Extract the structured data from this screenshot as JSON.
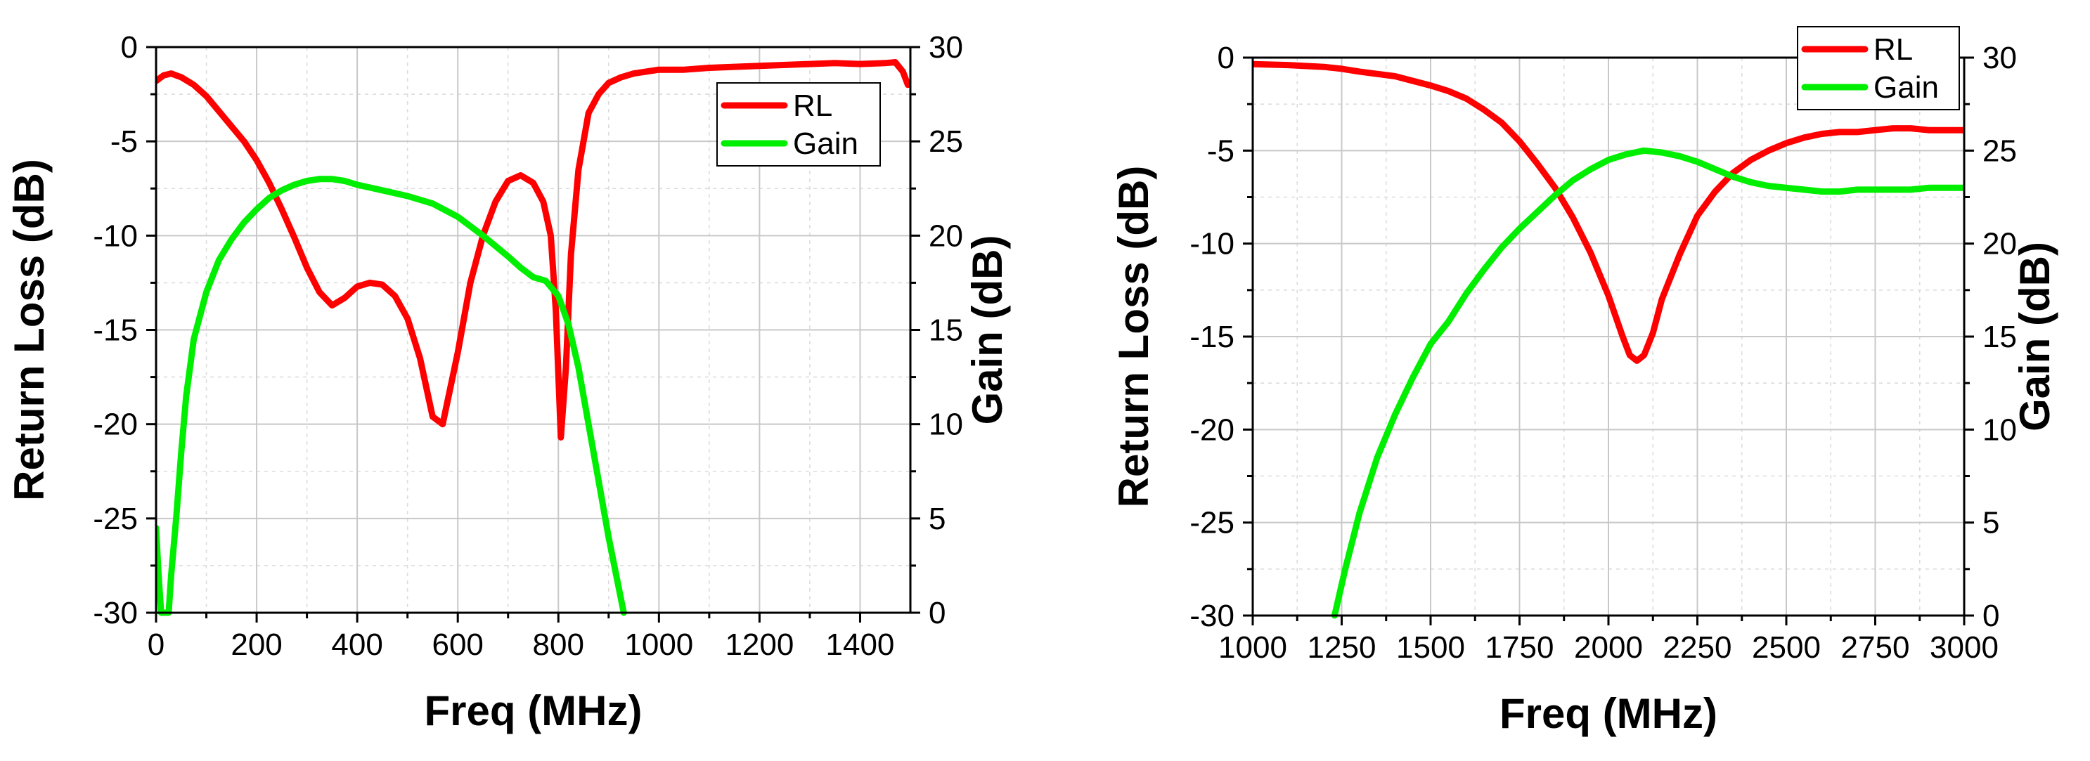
{
  "chart_data": [
    {
      "type": "line",
      "xlabel": "Freq (MHz)",
      "ylabel": "Return Loss (dB)",
      "y2label": "Gain (dB)",
      "xlim": [
        0,
        1500
      ],
      "ylim": [
        -30,
        0
      ],
      "y2lim": [
        0,
        30
      ],
      "xticks": [
        0,
        200,
        400,
        600,
        800,
        1000,
        1200,
        1400
      ],
      "yticks": [
        -30,
        -25,
        -20,
        -15,
        -10,
        -5,
        0
      ],
      "y2ticks": [
        0,
        5,
        10,
        15,
        20,
        25,
        30
      ],
      "grid": true,
      "legend_position": "top-right",
      "series": [
        {
          "name": "RL",
          "color": "#ff0000",
          "axis": "left",
          "points": [
            [
              0,
              -1.8
            ],
            [
              15,
              -1.5
            ],
            [
              30,
              -1.4
            ],
            [
              50,
              -1.6
            ],
            [
              75,
              -2.0
            ],
            [
              100,
              -2.6
            ],
            [
              125,
              -3.4
            ],
            [
              150,
              -4.2
            ],
            [
              175,
              -5.0
            ],
            [
              200,
              -6.0
            ],
            [
              225,
              -7.2
            ],
            [
              250,
              -8.6
            ],
            [
              275,
              -10.1
            ],
            [
              300,
              -11.7
            ],
            [
              325,
              -13.0
            ],
            [
              350,
              -13.7
            ],
            [
              375,
              -13.3
            ],
            [
              400,
              -12.7
            ],
            [
              425,
              -12.5
            ],
            [
              450,
              -12.6
            ],
            [
              475,
              -13.2
            ],
            [
              500,
              -14.4
            ],
            [
              525,
              -16.5
            ],
            [
              550,
              -19.6
            ],
            [
              570,
              -20.0
            ],
            [
              600,
              -16.2
            ],
            [
              625,
              -12.5
            ],
            [
              650,
              -10.0
            ],
            [
              675,
              -8.2
            ],
            [
              700,
              -7.1
            ],
            [
              725,
              -6.8
            ],
            [
              750,
              -7.2
            ],
            [
              770,
              -8.2
            ],
            [
              785,
              -10.0
            ],
            [
              795,
              -14.0
            ],
            [
              805,
              -20.7
            ],
            [
              815,
              -17.0
            ],
            [
              825,
              -11.0
            ],
            [
              840,
              -6.5
            ],
            [
              860,
              -3.5
            ],
            [
              880,
              -2.5
            ],
            [
              900,
              -1.9
            ],
            [
              925,
              -1.6
            ],
            [
              950,
              -1.4
            ],
            [
              1000,
              -1.2
            ],
            [
              1050,
              -1.2
            ],
            [
              1100,
              -1.1
            ],
            [
              1200,
              -1.0
            ],
            [
              1300,
              -0.9
            ],
            [
              1350,
              -0.85
            ],
            [
              1400,
              -0.9
            ],
            [
              1450,
              -0.85
            ],
            [
              1470,
              -0.8
            ],
            [
              1485,
              -1.3
            ],
            [
              1495,
              -2.0
            ]
          ]
        },
        {
          "name": "Gain",
          "color": "#00ee00",
          "axis": "right",
          "points": [
            [
              0,
              4.5
            ],
            [
              5,
              2.0
            ],
            [
              10,
              0
            ],
            [
              25,
              0
            ],
            [
              30,
              2.0
            ],
            [
              40,
              5.0
            ],
            [
              50,
              8.5
            ],
            [
              60,
              11.5
            ],
            [
              75,
              14.5
            ],
            [
              100,
              17.0
            ],
            [
              125,
              18.7
            ],
            [
              150,
              19.8
            ],
            [
              175,
              20.7
            ],
            [
              200,
              21.4
            ],
            [
              225,
              22.0
            ],
            [
              250,
              22.4
            ],
            [
              275,
              22.7
            ],
            [
              300,
              22.9
            ],
            [
              325,
              23.0
            ],
            [
              350,
              23.0
            ],
            [
              375,
              22.9
            ],
            [
              400,
              22.7
            ],
            [
              450,
              22.4
            ],
            [
              500,
              22.1
            ],
            [
              550,
              21.7
            ],
            [
              600,
              21.0
            ],
            [
              650,
              20.0
            ],
            [
              700,
              18.9
            ],
            [
              725,
              18.3
            ],
            [
              750,
              17.8
            ],
            [
              775,
              17.6
            ],
            [
              800,
              16.8
            ],
            [
              820,
              15.3
            ],
            [
              840,
              13.0
            ],
            [
              860,
              10.0
            ],
            [
              880,
              7.0
            ],
            [
              900,
              4.0
            ],
            [
              915,
              2.0
            ],
            [
              930,
              0
            ]
          ]
        }
      ]
    },
    {
      "type": "line",
      "xlabel": "Freq (MHz)",
      "ylabel": "Return Loss (dB)",
      "y2label": "Gain (dB)",
      "xlim": [
        1000,
        3000
      ],
      "ylim": [
        -30,
        0
      ],
      "y2lim": [
        0,
        30
      ],
      "xticks": [
        1000,
        1250,
        1500,
        1750,
        2000,
        2250,
        2500,
        2750,
        3000
      ],
      "yticks": [
        -30,
        -25,
        -20,
        -15,
        -10,
        -5,
        0
      ],
      "y2ticks": [
        0,
        5,
        10,
        15,
        20,
        25,
        30
      ],
      "grid": true,
      "legend_position": "top-right",
      "series": [
        {
          "name": "RL",
          "color": "#ff0000",
          "axis": "left",
          "points": [
            [
              1000,
              -0.35
            ],
            [
              1100,
              -0.4
            ],
            [
              1200,
              -0.5
            ],
            [
              1250,
              -0.6
            ],
            [
              1300,
              -0.75
            ],
            [
              1400,
              -1.0
            ],
            [
              1500,
              -1.5
            ],
            [
              1550,
              -1.8
            ],
            [
              1600,
              -2.2
            ],
            [
              1650,
              -2.8
            ],
            [
              1700,
              -3.5
            ],
            [
              1750,
              -4.5
            ],
            [
              1800,
              -5.7
            ],
            [
              1850,
              -7.0
            ],
            [
              1900,
              -8.6
            ],
            [
              1950,
              -10.5
            ],
            [
              2000,
              -12.8
            ],
            [
              2040,
              -15.0
            ],
            [
              2060,
              -16.0
            ],
            [
              2080,
              -16.3
            ],
            [
              2100,
              -16.0
            ],
            [
              2125,
              -14.8
            ],
            [
              2150,
              -13.0
            ],
            [
              2200,
              -10.6
            ],
            [
              2250,
              -8.5
            ],
            [
              2300,
              -7.2
            ],
            [
              2350,
              -6.2
            ],
            [
              2400,
              -5.5
            ],
            [
              2450,
              -5.0
            ],
            [
              2500,
              -4.6
            ],
            [
              2550,
              -4.3
            ],
            [
              2600,
              -4.1
            ],
            [
              2650,
              -4.0
            ],
            [
              2700,
              -4.0
            ],
            [
              2750,
              -3.9
            ],
            [
              2800,
              -3.8
            ],
            [
              2850,
              -3.8
            ],
            [
              2900,
              -3.9
            ],
            [
              3000,
              -3.9
            ]
          ]
        },
        {
          "name": "Gain",
          "color": "#00ee00",
          "axis": "right",
          "points": [
            [
              1230,
              0
            ],
            [
              1260,
              2.5
            ],
            [
              1300,
              5.5
            ],
            [
              1350,
              8.5
            ],
            [
              1400,
              10.8
            ],
            [
              1450,
              12.8
            ],
            [
              1500,
              14.6
            ],
            [
              1550,
              15.8
            ],
            [
              1600,
              17.3
            ],
            [
              1650,
              18.6
            ],
            [
              1700,
              19.8
            ],
            [
              1750,
              20.8
            ],
            [
              1800,
              21.7
            ],
            [
              1850,
              22.6
            ],
            [
              1900,
              23.4
            ],
            [
              1950,
              24.0
            ],
            [
              2000,
              24.5
            ],
            [
              2050,
              24.8
            ],
            [
              2100,
              25.0
            ],
            [
              2150,
              24.9
            ],
            [
              2200,
              24.7
            ],
            [
              2250,
              24.4
            ],
            [
              2300,
              24.0
            ],
            [
              2350,
              23.6
            ],
            [
              2400,
              23.3
            ],
            [
              2450,
              23.1
            ],
            [
              2500,
              23.0
            ],
            [
              2550,
              22.9
            ],
            [
              2600,
              22.8
            ],
            [
              2650,
              22.8
            ],
            [
              2700,
              22.9
            ],
            [
              2750,
              22.9
            ],
            [
              2800,
              22.9
            ],
            [
              2850,
              22.9
            ],
            [
              2900,
              23.0
            ],
            [
              2950,
              23.0
            ],
            [
              3000,
              23.0
            ]
          ]
        }
      ]
    }
  ]
}
